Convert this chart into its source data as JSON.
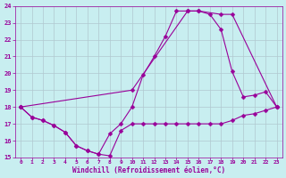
{
  "xlabel": "Windchill (Refroidissement éolien,°C)",
  "ylabel": "",
  "xlim": [
    -0.5,
    23.5
  ],
  "ylim": [
    15,
    24
  ],
  "yticks": [
    15,
    16,
    17,
    18,
    19,
    20,
    21,
    22,
    23,
    24
  ],
  "xticks": [
    0,
    1,
    2,
    3,
    4,
    5,
    6,
    7,
    8,
    9,
    10,
    11,
    12,
    13,
    14,
    15,
    16,
    17,
    18,
    19,
    20,
    21,
    22,
    23
  ],
  "background_color": "#c8eef0",
  "grid_color": "#b0c8d0",
  "line_color": "#990099",
  "line1_x": [
    0,
    1,
    2,
    3,
    4,
    5,
    6,
    7,
    8,
    9,
    10,
    11,
    12,
    13,
    14,
    15,
    16,
    17,
    18,
    19,
    20,
    21,
    22,
    23
  ],
  "line1_y": [
    18.0,
    17.4,
    17.2,
    16.9,
    16.5,
    15.7,
    15.4,
    15.2,
    15.1,
    16.6,
    17.0,
    17.0,
    17.0,
    17.0,
    17.0,
    17.0,
    17.0,
    17.0,
    17.0,
    17.2,
    17.5,
    17.6,
    17.8,
    18.0
  ],
  "line2_x": [
    0,
    1,
    2,
    3,
    4,
    5,
    6,
    7,
    8,
    9,
    10,
    11,
    12,
    13,
    14,
    15,
    16,
    17,
    18,
    19,
    20,
    21,
    22,
    23
  ],
  "line2_y": [
    18.0,
    17.4,
    17.2,
    16.9,
    16.5,
    15.7,
    15.4,
    15.2,
    16.4,
    17.0,
    18.0,
    19.9,
    21.0,
    22.2,
    23.7,
    23.7,
    23.7,
    23.5,
    22.6,
    20.1,
    18.6,
    18.7,
    18.9,
    18.0
  ],
  "line3_x": [
    0,
    10,
    15,
    16,
    18,
    19,
    23
  ],
  "line3_y": [
    18.0,
    19.0,
    23.7,
    23.7,
    23.5,
    23.5,
    18.0
  ],
  "marker_size": 2.5
}
